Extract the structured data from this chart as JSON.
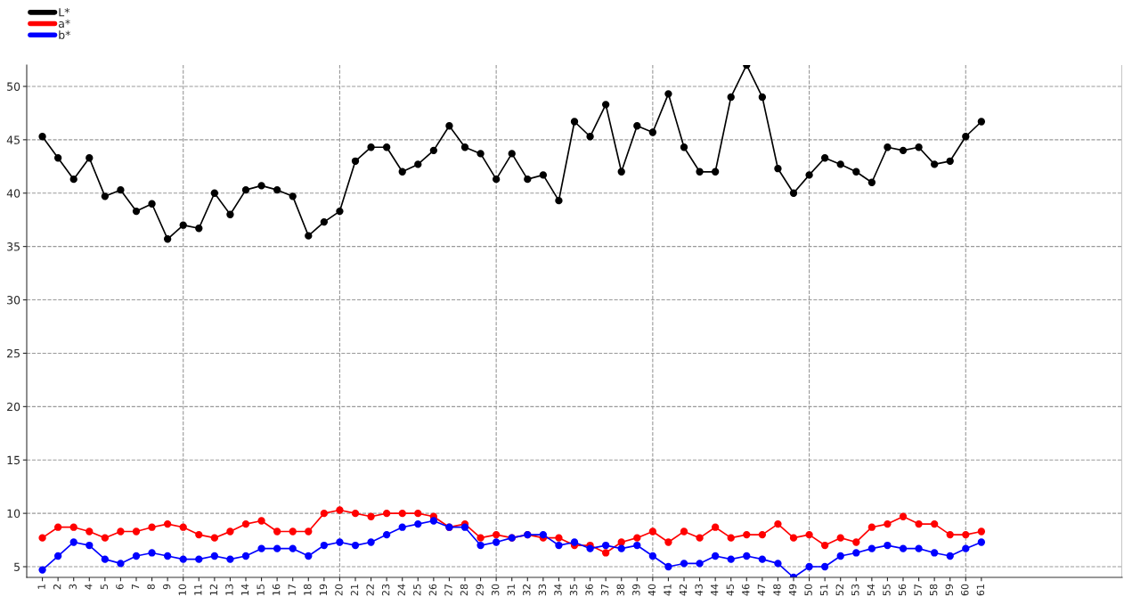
{
  "chart_data": {
    "type": "line",
    "x": [
      1,
      2,
      3,
      4,
      5,
      6,
      7,
      8,
      9,
      10,
      11,
      12,
      13,
      14,
      15,
      16,
      17,
      18,
      19,
      20,
      21,
      22,
      23,
      24,
      25,
      26,
      27,
      28,
      29,
      30,
      31,
      32,
      33,
      34,
      35,
      36,
      37,
      38,
      39,
      40,
      41,
      42,
      43,
      44,
      45,
      46,
      47,
      48,
      49,
      50,
      51,
      52,
      53,
      54,
      55,
      56,
      57,
      58,
      59,
      60,
      61
    ],
    "series": [
      {
        "name": "L*",
        "color": "#000000",
        "values": [
          45.3,
          43.3,
          41.3,
          43.3,
          39.7,
          40.3,
          38.3,
          39,
          35.7,
          37,
          36.7,
          40,
          38,
          40.3,
          40.7,
          40.3,
          39.7,
          36,
          37.3,
          38.3,
          43,
          44.3,
          44.3,
          42,
          42.7,
          44,
          46.3,
          44.3,
          43.7,
          41.3,
          43.7,
          41.3,
          41.7,
          39.3,
          46.7,
          45.3,
          48.3,
          42,
          46.3,
          45.7,
          49.3,
          44.3,
          42,
          42,
          49,
          52,
          49,
          42.3,
          40,
          41.7,
          43.3,
          42.7,
          42,
          41,
          44.3,
          44,
          44.3,
          42.7,
          43,
          45.3,
          46.7
        ]
      },
      {
        "name": "a*",
        "color": "#ff0000",
        "values": [
          7.7,
          8.7,
          8.7,
          8.3,
          7.7,
          8.3,
          8.3,
          8.7,
          9,
          8.7,
          8,
          7.7,
          8.3,
          9,
          9.3,
          8.3,
          8.3,
          8.3,
          10,
          10.3,
          10,
          9.7,
          10,
          10,
          10,
          9.7,
          8.7,
          9,
          7.7,
          8,
          7.7,
          8,
          7.7,
          7.7,
          7,
          7,
          6.3,
          7.3,
          7.7,
          8.3,
          7.3,
          8.3,
          7.7,
          8.7,
          7.7,
          8,
          8,
          9,
          7.7,
          8,
          7,
          7.7,
          7.3,
          8.7,
          9,
          9.7,
          9,
          9,
          8,
          8,
          8.3
        ]
      },
      {
        "name": "b*",
        "color": "#0000ff",
        "values": [
          4.7,
          6,
          7.3,
          7,
          5.7,
          5.3,
          6,
          6.3,
          6,
          5.7,
          5.7,
          6,
          5.7,
          6,
          6.7,
          6.7,
          6.7,
          6,
          7,
          7.3,
          7,
          7.3,
          8,
          8.7,
          9,
          9.3,
          8.7,
          8.7,
          7,
          7.3,
          7.7,
          8,
          8,
          7,
          7.3,
          6.7,
          7,
          6.7,
          7,
          6,
          5,
          5.3,
          5.3,
          6,
          5.7,
          6,
          5.7,
          5.3,
          4,
          5,
          5,
          6,
          6.3,
          6.7,
          7,
          6.7,
          6.7,
          6.3,
          6,
          6.7,
          7.3
        ]
      }
    ],
    "xlim": [
      0,
      70
    ],
    "xticks": [
      1,
      2,
      3,
      4,
      5,
      6,
      7,
      8,
      9,
      10,
      11,
      12,
      13,
      14,
      15,
      16,
      17,
      18,
      19,
      20,
      21,
      22,
      23,
      24,
      25,
      26,
      27,
      28,
      29,
      30,
      31,
      32,
      33,
      34,
      35,
      36,
      37,
      38,
      39,
      40,
      41,
      42,
      43,
      44,
      45,
      46,
      47,
      48,
      49,
      50,
      51,
      52,
      53,
      54,
      55,
      56,
      57,
      58,
      59,
      60,
      61
    ],
    "ylim": [
      4,
      52
    ],
    "yticks": [
      5,
      10,
      15,
      20,
      25,
      30,
      35,
      40,
      45,
      50
    ],
    "ref_lines": [
      {
        "axis": "x",
        "value": 10,
        "color": "#999999",
        "line_style": "dashed"
      },
      {
        "axis": "x",
        "value": 20,
        "color": "#999999",
        "line_style": "dashed"
      },
      {
        "axis": "x",
        "value": 30,
        "color": "#999999",
        "line_style": "dashed"
      },
      {
        "axis": "x",
        "value": 40,
        "color": "#999999",
        "line_style": "dashed"
      },
      {
        "axis": "x",
        "value": 50,
        "color": "#999999",
        "line_style": "dashed"
      },
      {
        "axis": "x",
        "value": 60,
        "color": "#999999",
        "line_style": "dashed"
      },
      {
        "axis": "x",
        "value": 70,
        "color": "#999999",
        "line_style": "solid"
      }
    ],
    "grid": "y",
    "legend": "top left",
    "marker": "circle",
    "line_style": "solid"
  }
}
